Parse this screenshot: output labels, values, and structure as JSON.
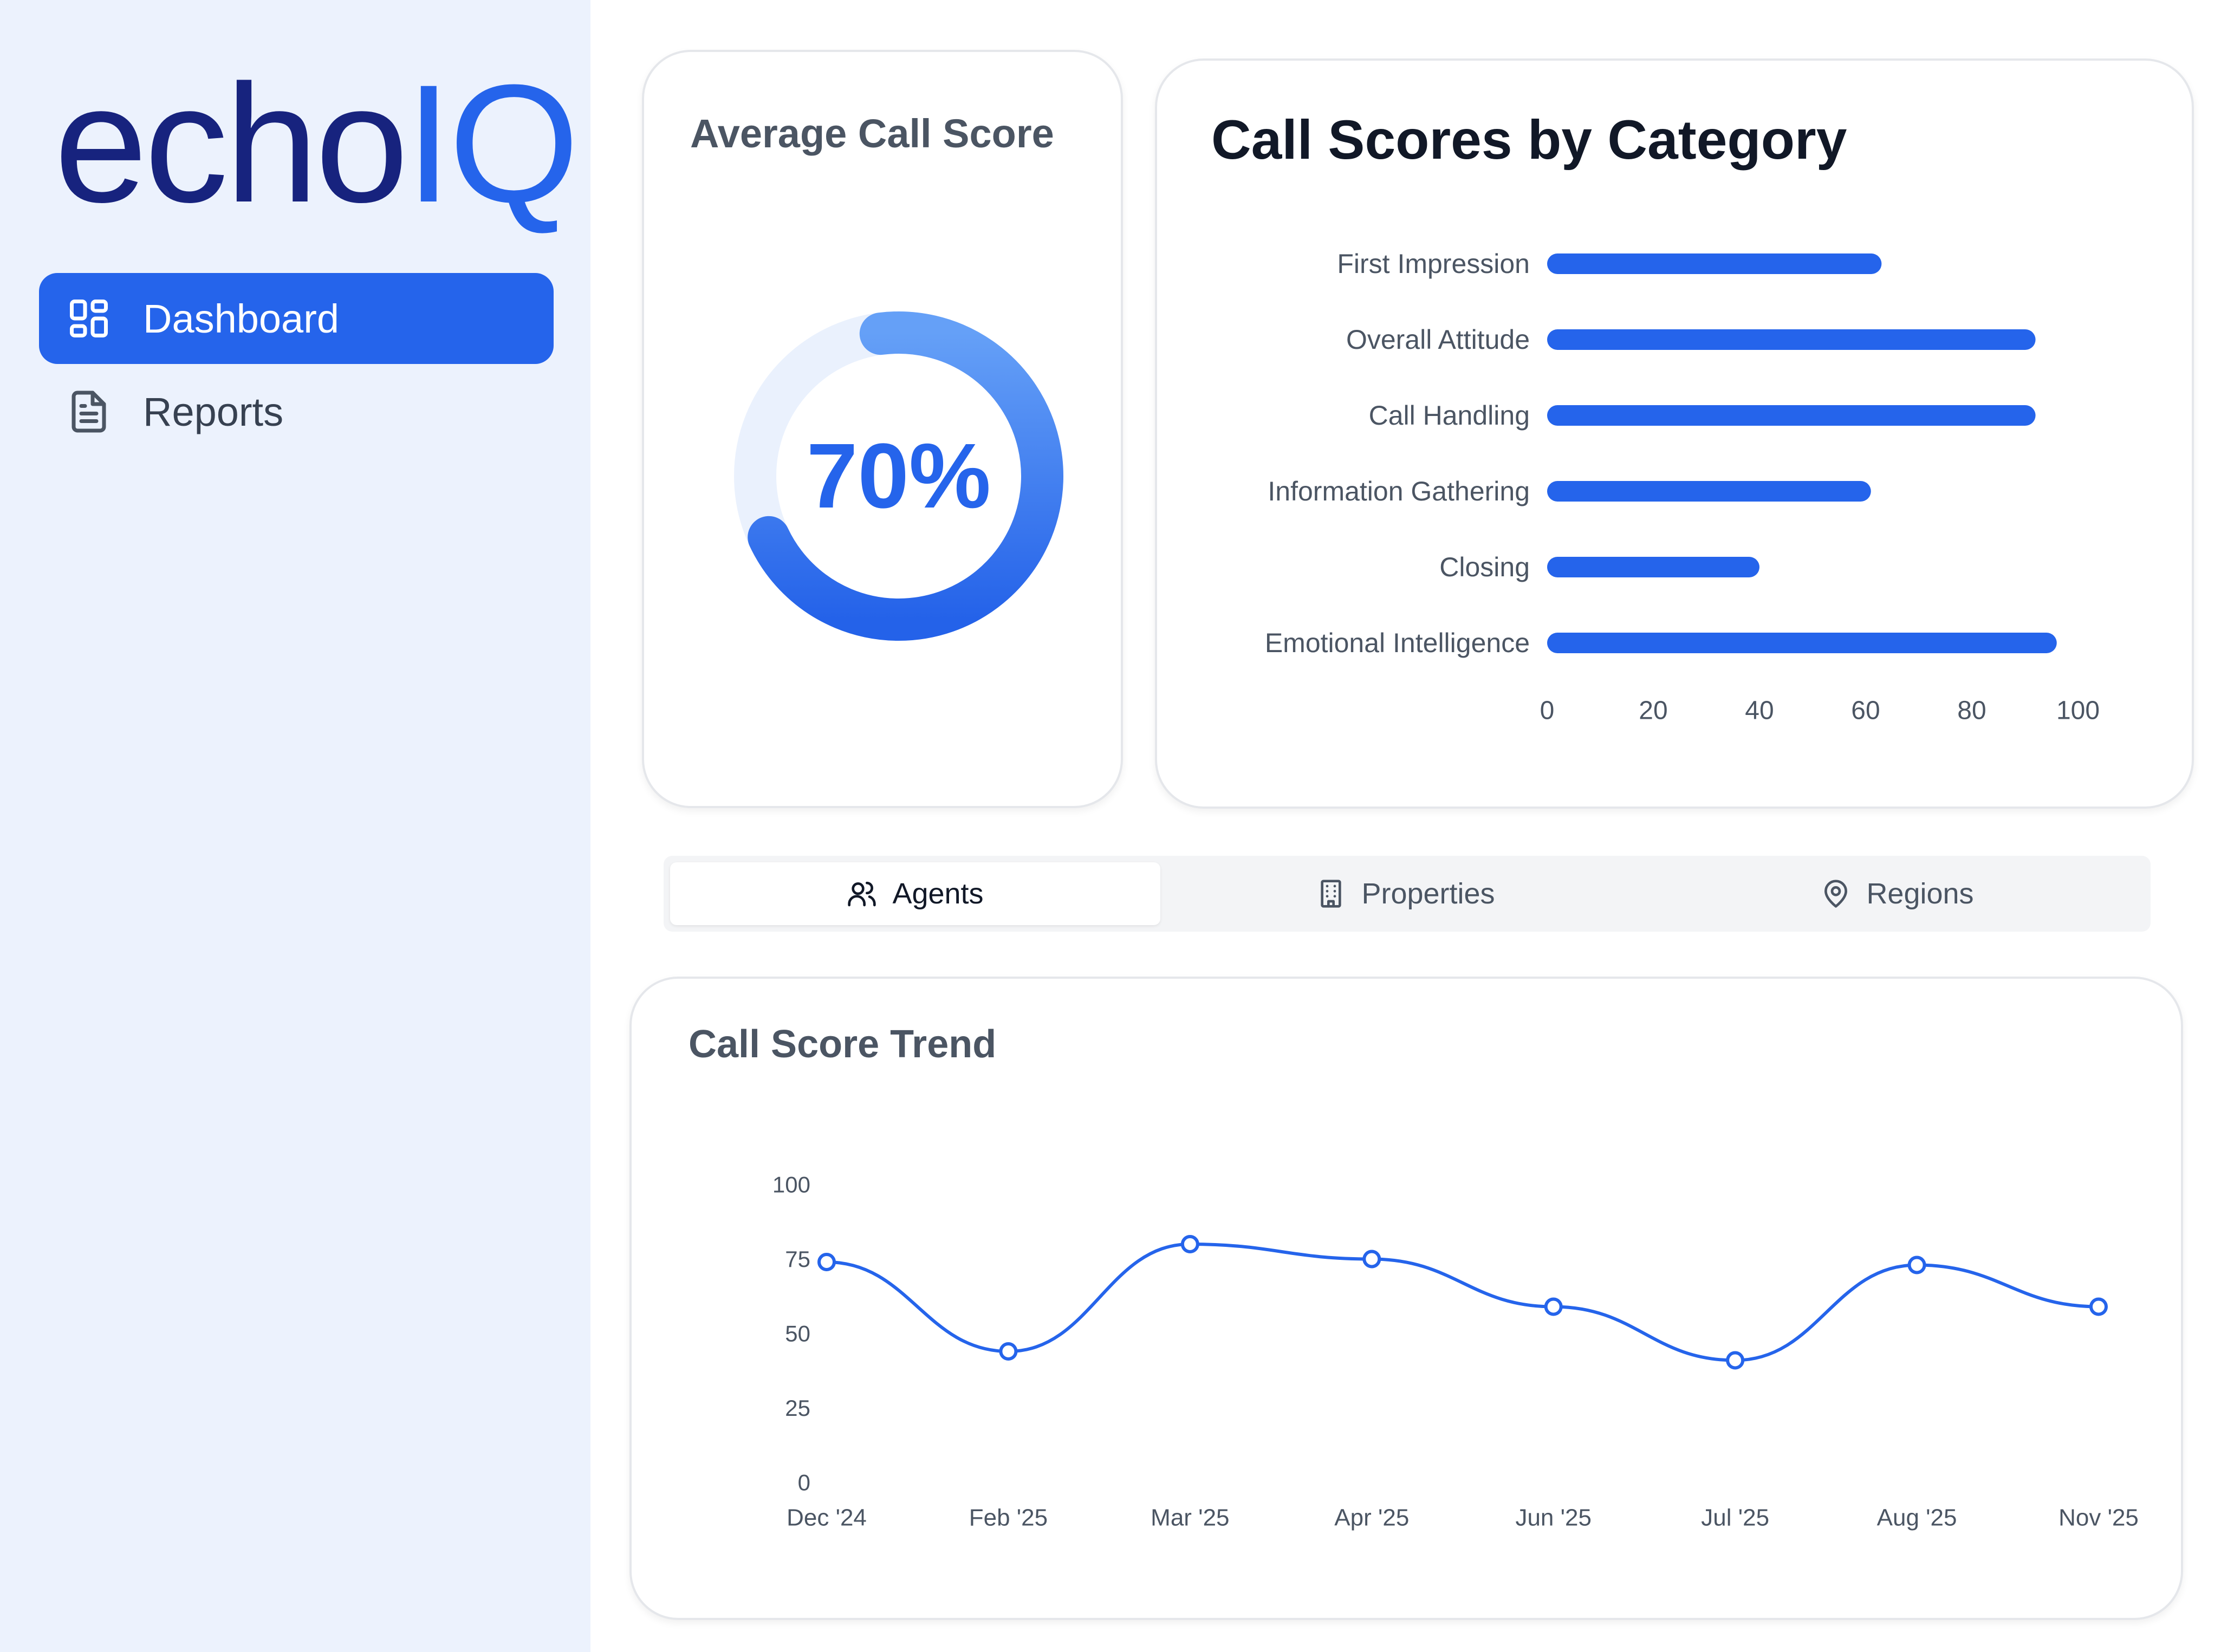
{
  "brand": {
    "logo_part1": "echo",
    "logo_part2": "IQ",
    "color_dark": "#17237e",
    "color_accent": "#2564eb"
  },
  "sidebar": {
    "items": [
      {
        "label": "Dashboard",
        "icon": "dashboard-icon",
        "active": true
      },
      {
        "label": "Reports",
        "icon": "report-document-icon",
        "active": false
      }
    ]
  },
  "average_card": {
    "title": "Average Call Score",
    "value_label": "70%",
    "value": 70
  },
  "category_card": {
    "title": "Call Scores by Category",
    "chart_data": {
      "type": "bar",
      "orientation": "horizontal",
      "categories": [
        "First Impression",
        "Overall Attitude",
        "Call Handling",
        "Information Gathering",
        "Closing",
        "Emotional Intelligence"
      ],
      "values": [
        63,
        92,
        92,
        61,
        40,
        96
      ],
      "xlim": [
        0,
        100
      ],
      "xticks": [
        "0",
        "20",
        "40",
        "60",
        "80",
        "100"
      ],
      "color": "#2564eb"
    }
  },
  "tabs": [
    {
      "label": "Agents",
      "icon": "users-icon",
      "active": true
    },
    {
      "label": "Properties",
      "icon": "building-icon",
      "active": false
    },
    {
      "label": "Regions",
      "icon": "map-pin-icon",
      "active": false
    }
  ],
  "trend_card": {
    "title": "Call Score Trend",
    "chart_data": {
      "type": "line",
      "x": [
        "Dec '24",
        "Feb '25",
        "Mar '25",
        "Apr '25",
        "Jun '25",
        "Jul '25",
        "Aug '25",
        "Nov '25"
      ],
      "values": [
        74,
        44,
        80,
        75,
        59,
        41,
        73,
        59
      ],
      "ylim": [
        0,
        100
      ],
      "yticks": [
        "0",
        "25",
        "50",
        "75",
        "100"
      ],
      "color": "#2564eb"
    }
  }
}
